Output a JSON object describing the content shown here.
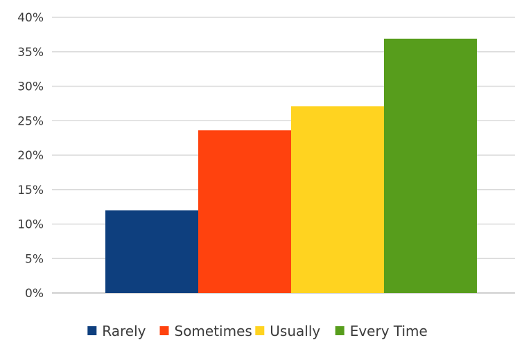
{
  "chart_data": {
    "type": "bar",
    "categories": [
      "Rarely",
      "Sometimes",
      "Usually",
      "Every Time"
    ],
    "values": [
      12,
      23.6,
      27.1,
      36.9
    ],
    "colors": [
      "#0e3f7e",
      "#ff420e",
      "#ffd320",
      "#579d1c"
    ],
    "ylim": [
      0,
      40
    ],
    "yticks": [
      0,
      5,
      10,
      15,
      20,
      25,
      30,
      35,
      40
    ],
    "ytick_labels": [
      "0%",
      "5%",
      "10%",
      "15%",
      "20%",
      "25%",
      "30%",
      "35%",
      "40%"
    ],
    "grid": true,
    "legend_position": "bottom",
    "legend": [
      "Rarely",
      "Sometimes",
      "Usually",
      "Every Time"
    ]
  }
}
